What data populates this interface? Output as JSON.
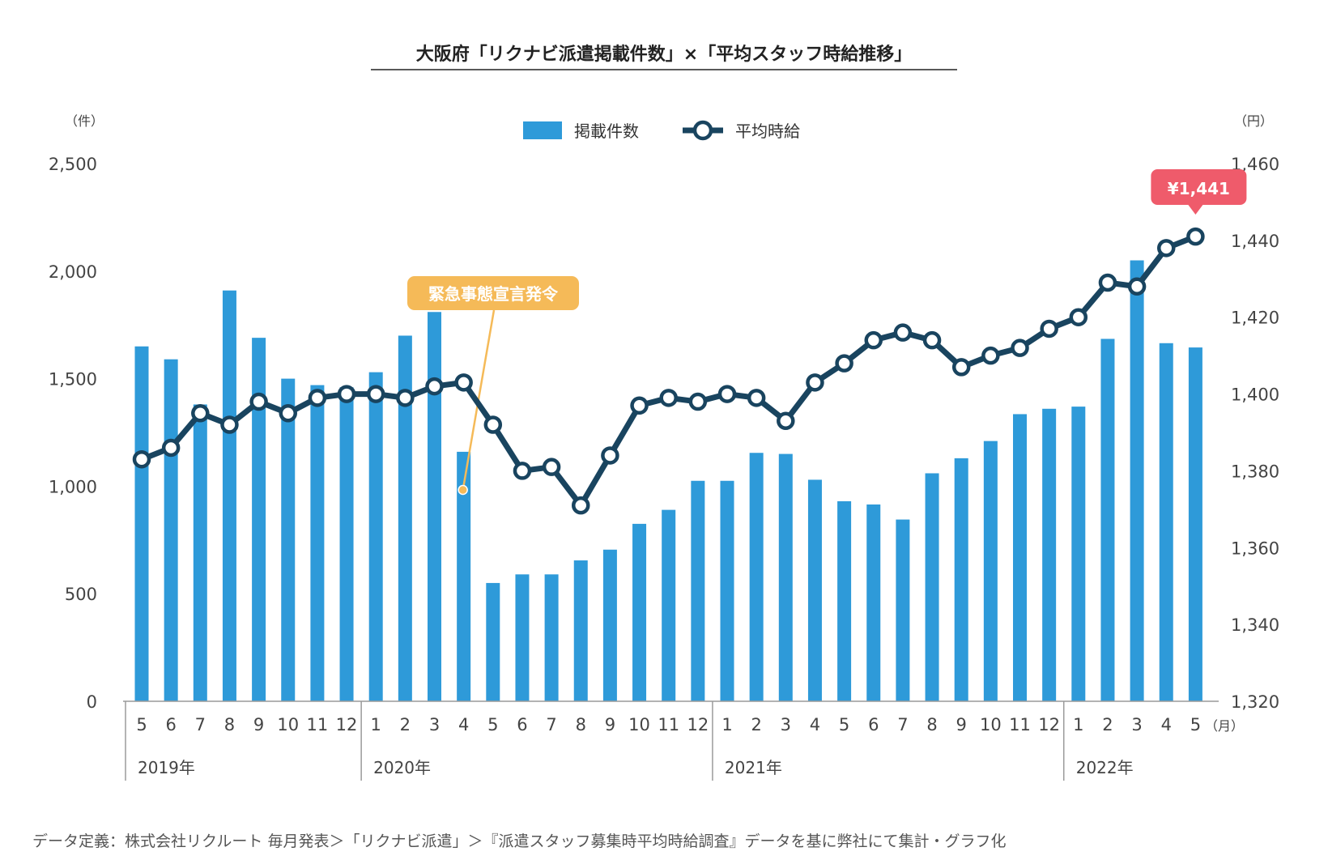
{
  "footer": "データ定義：株式会社リクルート 毎月発表＞「リクナビ派遣」＞『派遣スタッフ募集時平均時給調査』データを基に弊社にて集計・グラフ化",
  "chart_data": {
    "type": "bar+line",
    "title": "大阪府「リクナビ派遣掲載件数」×「平均スタッフ時給推移」",
    "left_axis": {
      "unit": "（件）",
      "ylim": [
        0,
        2500
      ],
      "ticks": [
        "0",
        "500",
        "1,000",
        "1,500",
        "2,000",
        "2,500"
      ]
    },
    "right_axis": {
      "unit": "（円）",
      "ylim": [
        1320,
        1460
      ],
      "ticks": [
        "1,320",
        "1,340",
        "1,360",
        "1,380",
        "1,400",
        "1,420",
        "1,440",
        "1,460"
      ]
    },
    "month_unit": "（月）",
    "categories": [
      "5",
      "6",
      "7",
      "8",
      "9",
      "10",
      "11",
      "12",
      "1",
      "2",
      "3",
      "4",
      "5",
      "6",
      "7",
      "8",
      "9",
      "10",
      "11",
      "12",
      "1",
      "2",
      "3",
      "4",
      "5",
      "6",
      "7",
      "8",
      "9",
      "10",
      "11",
      "12",
      "1",
      "2",
      "3",
      "4",
      "5"
    ],
    "years": [
      {
        "label": "2019年",
        "start": 0
      },
      {
        "label": "2020年",
        "start": 8
      },
      {
        "label": "2021年",
        "start": 20
      },
      {
        "label": "2022年",
        "start": 32
      }
    ],
    "series": [
      {
        "name": "掲載件数",
        "type": "bar",
        "axis": "left",
        "color": "#2e9ad9",
        "values": [
          1650,
          1590,
          1380,
          1910,
          1690,
          1500,
          1470,
          1460,
          1530,
          1700,
          1810,
          1160,
          550,
          590,
          590,
          655,
          705,
          825,
          890,
          1025,
          1025,
          1155,
          1150,
          1030,
          930,
          915,
          845,
          1060,
          1130,
          1210,
          1335,
          1360,
          1370,
          1685,
          2050,
          1665,
          1645
        ]
      },
      {
        "name": "平均時給",
        "type": "line",
        "axis": "right",
        "color": "#19445f",
        "values": [
          1383,
          1386,
          1395,
          1392,
          1398,
          1395,
          1399,
          1400,
          1400,
          1399,
          1402,
          1403,
          1392,
          1380,
          1381,
          1371,
          1384,
          1397,
          1399,
          1398,
          1400,
          1399,
          1393,
          1403,
          1408,
          1414,
          1416,
          1414,
          1407,
          1410,
          1412,
          1417,
          1420,
          1429,
          1428,
          1438,
          1441
        ]
      }
    ],
    "annotations": [
      {
        "text": "緊急事態宣言発令",
        "index": 11,
        "color": "#f5ba58"
      },
      {
        "text": "¥1,441",
        "index": 36,
        "color": "#ef5b6b"
      }
    ]
  }
}
